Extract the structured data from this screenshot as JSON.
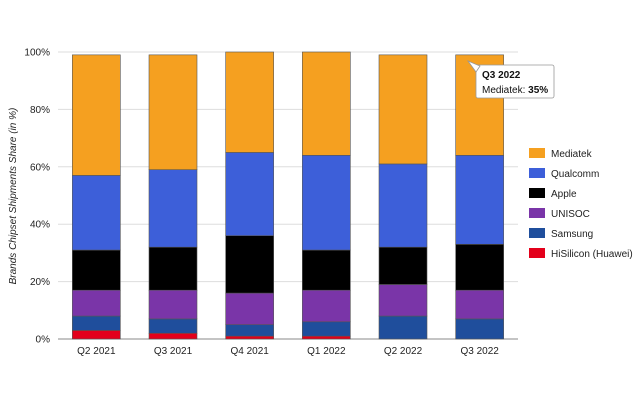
{
  "chart_data": {
    "type": "bar",
    "stacked": true,
    "categories": [
      "Q2 2021",
      "Q3 2021",
      "Q4 2021",
      "Q1 2022",
      "Q2 2022",
      "Q3 2022"
    ],
    "series": [
      {
        "name": "HiSilicon (Huawei)",
        "color": "#e3001b",
        "values": [
          3,
          2,
          1,
          1,
          0,
          0
        ]
      },
      {
        "name": "Samsung",
        "color": "#1f4e9c",
        "values": [
          5,
          5,
          4,
          5,
          8,
          7
        ]
      },
      {
        "name": "UNISOC",
        "color": "#7a35a8",
        "values": [
          9,
          10,
          11,
          11,
          11,
          10
        ]
      },
      {
        "name": "Apple",
        "color": "#000000",
        "values": [
          14,
          15,
          20,
          14,
          13,
          16
        ]
      },
      {
        "name": "Qualcomm",
        "color": "#3d5fd9",
        "values": [
          26,
          27,
          29,
          33,
          29,
          31
        ]
      },
      {
        "name": "Mediatek",
        "color": "#f5a020",
        "values": [
          42,
          40,
          35,
          36,
          38,
          35
        ]
      }
    ],
    "legend_order": [
      "Mediatek",
      "Qualcomm",
      "Apple",
      "UNISOC",
      "Samsung",
      "HiSilicon (Huawei)"
    ],
    "legend_position": "right",
    "ylabel": "Brands Chipset Shipments Share (in %)",
    "xlabel": "",
    "ylim": [
      0,
      100
    ],
    "yticks": [
      "0%",
      "20%",
      "40%",
      "60%",
      "80%",
      "100%"
    ],
    "grid": true,
    "tooltip": {
      "title": "Q3 2022",
      "label": "Mediatek:",
      "value": "35%"
    }
  }
}
